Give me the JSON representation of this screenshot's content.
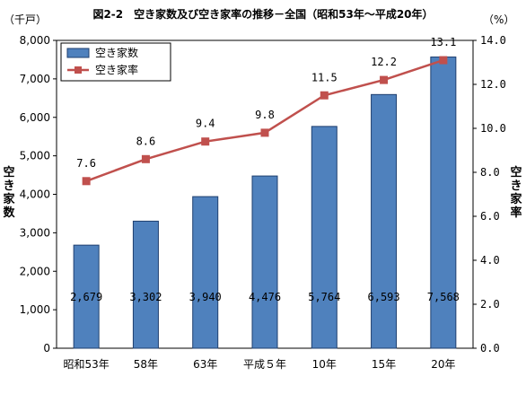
{
  "chart_data": {
    "type": "bar+line",
    "title": "図2-2　空き家数及び空き家率の推移－全国（昭和53年～平成20年）",
    "categories": [
      "昭和53年",
      "58年",
      "63年",
      "平成５年",
      "10年",
      "15年",
      "20年"
    ],
    "series": [
      {
        "name": "空き家数",
        "type": "bar",
        "axis": "left",
        "values": [
          2679,
          3302,
          3940,
          4476,
          5764,
          6593,
          7568
        ],
        "labels": [
          "2,679",
          "3,302",
          "3,940",
          "4,476",
          "5,764",
          "6,593",
          "7,568"
        ],
        "color": "#4f81bd"
      },
      {
        "name": "空き家率",
        "type": "line",
        "axis": "right",
        "values": [
          7.6,
          8.6,
          9.4,
          9.8,
          11.5,
          12.2,
          13.1
        ],
        "labels": [
          "7.6",
          "8.6",
          "9.4",
          "9.8",
          "11.5",
          "12.2",
          "13.1"
        ],
        "color": "#c0504d"
      }
    ],
    "y_left": {
      "unit": "（千戸）",
      "label": "空き家数",
      "ylim": [
        0,
        8000
      ],
      "ticks": [
        0,
        1000,
        2000,
        3000,
        4000,
        5000,
        6000,
        7000,
        8000
      ],
      "tick_labels": [
        "0",
        "1,000",
        "2,000",
        "3,000",
        "4,000",
        "5,000",
        "6,000",
        "7,000",
        "8,000"
      ]
    },
    "y_right": {
      "unit": "（%）",
      "label": "空き家率",
      "ylim": [
        0,
        14
      ],
      "ticks": [
        0,
        2,
        4,
        6,
        8,
        10,
        12,
        14
      ],
      "tick_labels": [
        "0.0",
        "2.0",
        "4.0",
        "6.0",
        "8.0",
        "10.0",
        "12.0",
        "14.0"
      ]
    },
    "grid": false,
    "legend": {
      "position": "top-left",
      "entries": [
        "空き家数",
        "空き家率"
      ]
    }
  }
}
